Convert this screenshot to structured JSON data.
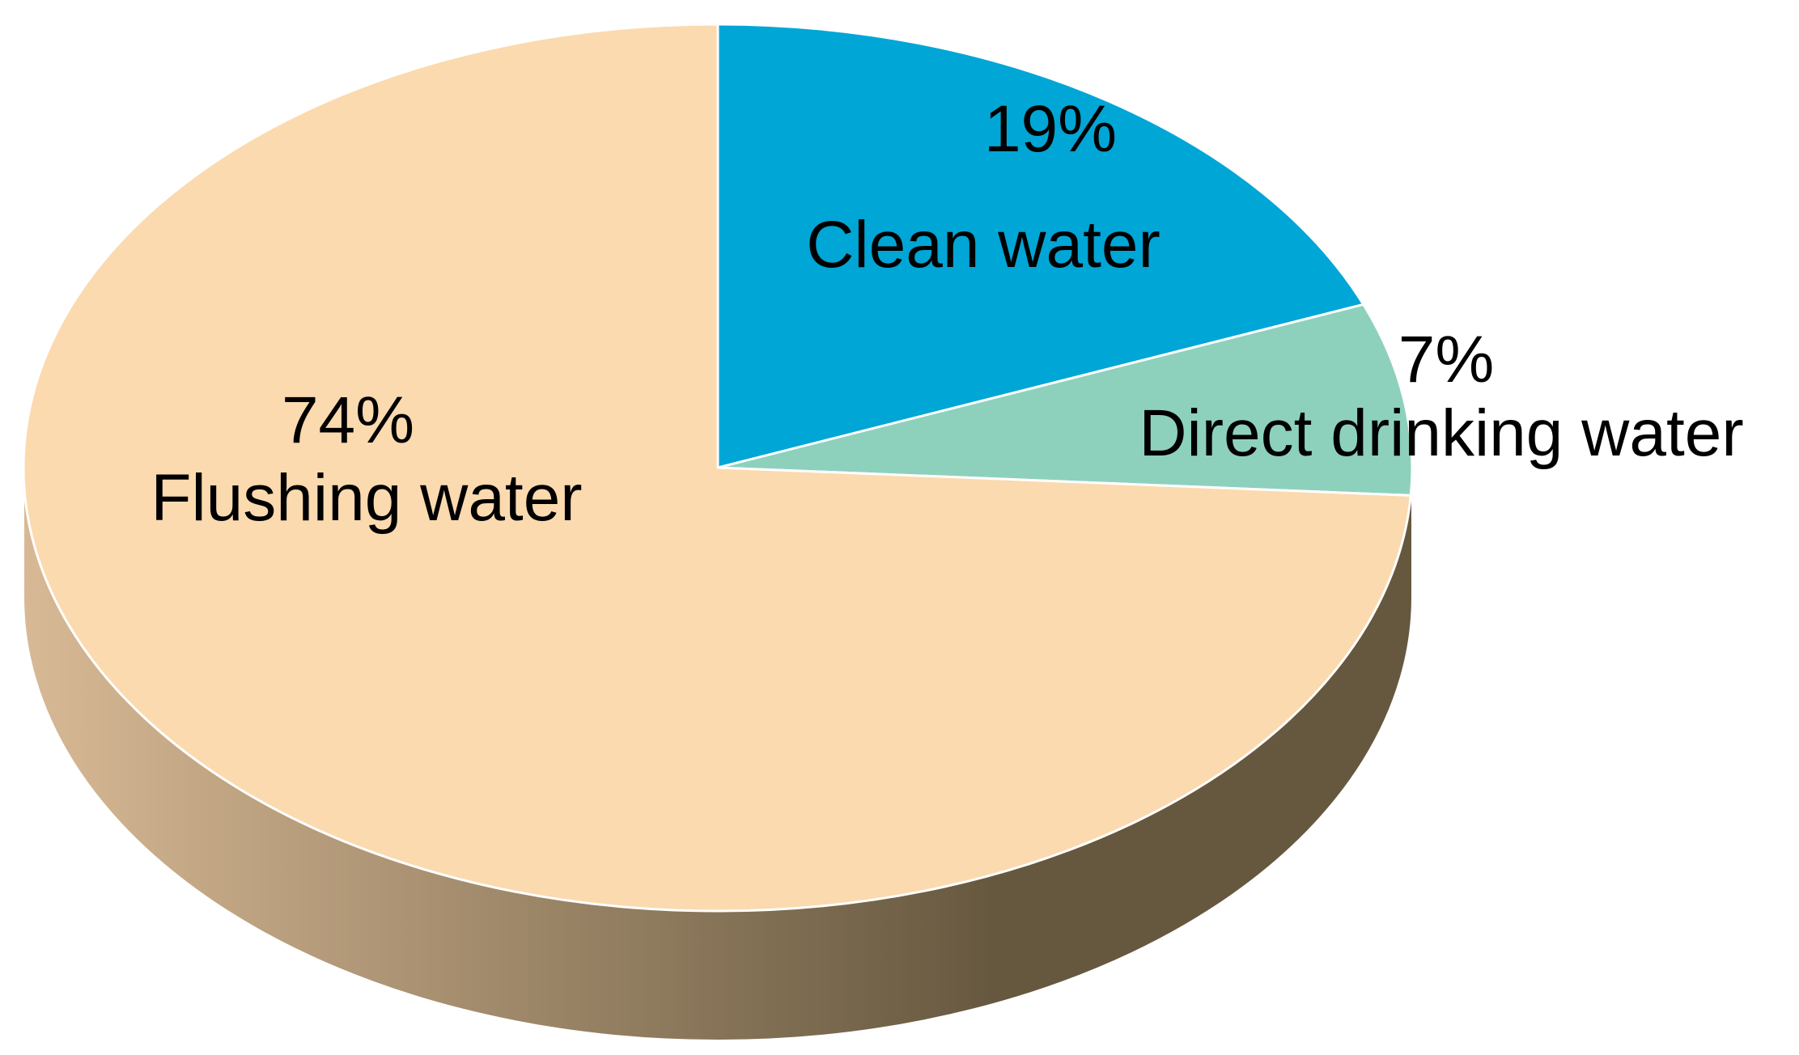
{
  "chart_data": {
    "type": "pie",
    "title": "",
    "style": "3d-tilted",
    "legend": "none",
    "slices": [
      {
        "label": "Clean water",
        "percent_label": "19%",
        "value": 19,
        "color": "#00a6d6"
      },
      {
        "label": "Direct drinking water",
        "percent_label": "7%",
        "value": 7,
        "color": "#8dd1bd"
      },
      {
        "label": "Flushing water",
        "percent_label": "74%",
        "value": 74,
        "color": "#fbdaaf"
      }
    ],
    "side_colors": [
      "#d8b995",
      "#66583f"
    ]
  }
}
